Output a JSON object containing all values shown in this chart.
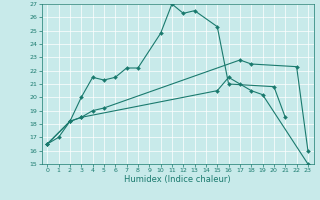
{
  "xlabel": "Humidex (Indice chaleur)",
  "xlim": [
    -0.5,
    23.5
  ],
  "ylim": [
    15,
    27
  ],
  "yticks": [
    15,
    16,
    17,
    18,
    19,
    20,
    21,
    22,
    23,
    24,
    25,
    26,
    27
  ],
  "xticks": [
    0,
    1,
    2,
    3,
    4,
    5,
    6,
    7,
    8,
    9,
    10,
    11,
    12,
    13,
    14,
    15,
    16,
    17,
    18,
    19,
    20,
    21,
    22,
    23
  ],
  "line_color": "#1a7a6e",
  "bg_color": "#c8eaea",
  "grid_color": "#ffffff",
  "series": [
    {
      "x": [
        0,
        1,
        2,
        3,
        4,
        5,
        6,
        7,
        8,
        10,
        11,
        12,
        13,
        15,
        16,
        20,
        21
      ],
      "y": [
        16.5,
        17.0,
        18.2,
        20.0,
        21.5,
        21.3,
        21.5,
        22.2,
        22.2,
        24.8,
        27.0,
        26.3,
        26.5,
        25.3,
        21.0,
        20.8,
        18.5
      ]
    },
    {
      "x": [
        0,
        2,
        3,
        4,
        5,
        17,
        18,
        22,
        23
      ],
      "y": [
        16.5,
        18.2,
        18.5,
        19.0,
        19.2,
        22.8,
        22.5,
        22.3,
        16.0
      ]
    },
    {
      "x": [
        0,
        2,
        3,
        15,
        16,
        17,
        18,
        19,
        23
      ],
      "y": [
        16.5,
        18.2,
        18.5,
        20.5,
        21.5,
        21.0,
        20.5,
        20.2,
        15.0
      ]
    }
  ]
}
